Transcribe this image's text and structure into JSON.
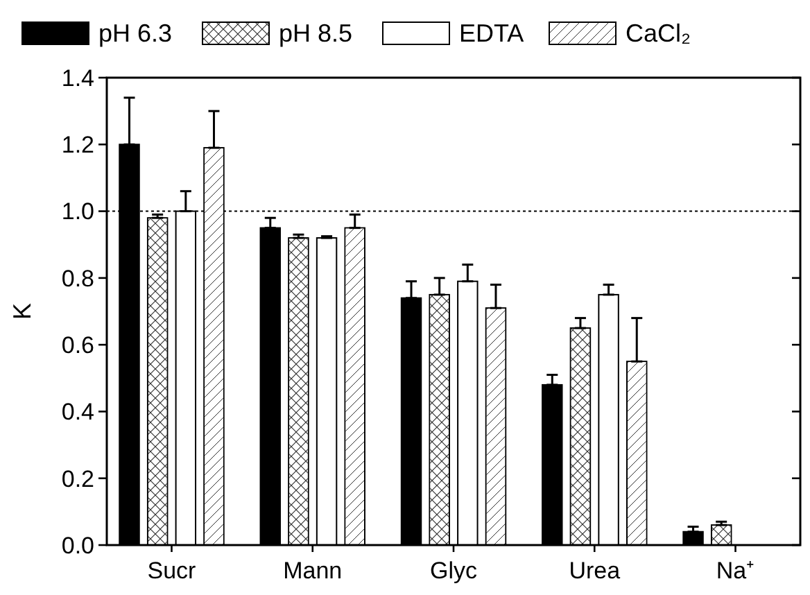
{
  "chart_data": {
    "type": "bar",
    "ylabel": "K",
    "categories": [
      "Sucr",
      "Mann",
      "Glyc",
      "Urea",
      "Na⁺"
    ],
    "series": [
      {
        "name": "pH 6.3",
        "color": "#000000",
        "values": [
          1.2,
          0.95,
          0.74,
          0.48,
          0.04
        ],
        "errors": [
          [
            1.2,
            1.34
          ],
          [
            0.95,
            0.98
          ],
          [
            0.74,
            0.79
          ],
          [
            0.48,
            0.51
          ],
          [
            0.04,
            0.055
          ]
        ]
      },
      {
        "name": "pH 8.5",
        "color": "#ffffff",
        "values": [
          0.98,
          0.92,
          0.75,
          0.65,
          0.06
        ],
        "errors": [
          [
            0.98,
            0.99
          ],
          [
            0.92,
            0.93
          ],
          [
            0.75,
            0.8
          ],
          [
            0.65,
            0.68
          ],
          [
            0.06,
            0.07
          ]
        ]
      },
      {
        "name": "EDTA",
        "color": "#ffffff",
        "values": [
          1.0,
          0.92,
          0.79,
          0.75,
          null
        ],
        "errors": [
          [
            1.0,
            1.06
          ],
          [
            0.92,
            0.925
          ],
          [
            0.79,
            0.84
          ],
          [
            0.75,
            0.78
          ],
          null
        ]
      },
      {
        "name": "CaCl₂",
        "color": "#ffffff",
        "values": [
          1.19,
          0.95,
          0.71,
          0.55,
          null
        ],
        "errors": [
          [
            1.19,
            1.3
          ],
          [
            0.95,
            0.99
          ],
          [
            0.71,
            0.78
          ],
          [
            0.55,
            0.68
          ],
          null
        ]
      }
    ],
    "ylim": [
      0,
      1.4
    ],
    "yticks": [
      {
        "value": 0,
        "label": "0.0"
      },
      {
        "value": 0.2,
        "label": "0.2"
      },
      {
        "value": 0.4,
        "label": "0.4"
      },
      {
        "value": 0.6,
        "label": "0.6"
      },
      {
        "value": 0.8,
        "label": "0.8"
      },
      {
        "value": 1,
        "label": "1.0"
      },
      {
        "value": 1.2,
        "label": "1.2"
      },
      {
        "value": 1.4,
        "label": "1.4"
      }
    ],
    "ref_lines": [
      {
        "axis": "y",
        "value": 1,
        "line_style": "dotted",
        "color": "#000000"
      }
    ],
    "legend": "top",
    "grid": false
  }
}
